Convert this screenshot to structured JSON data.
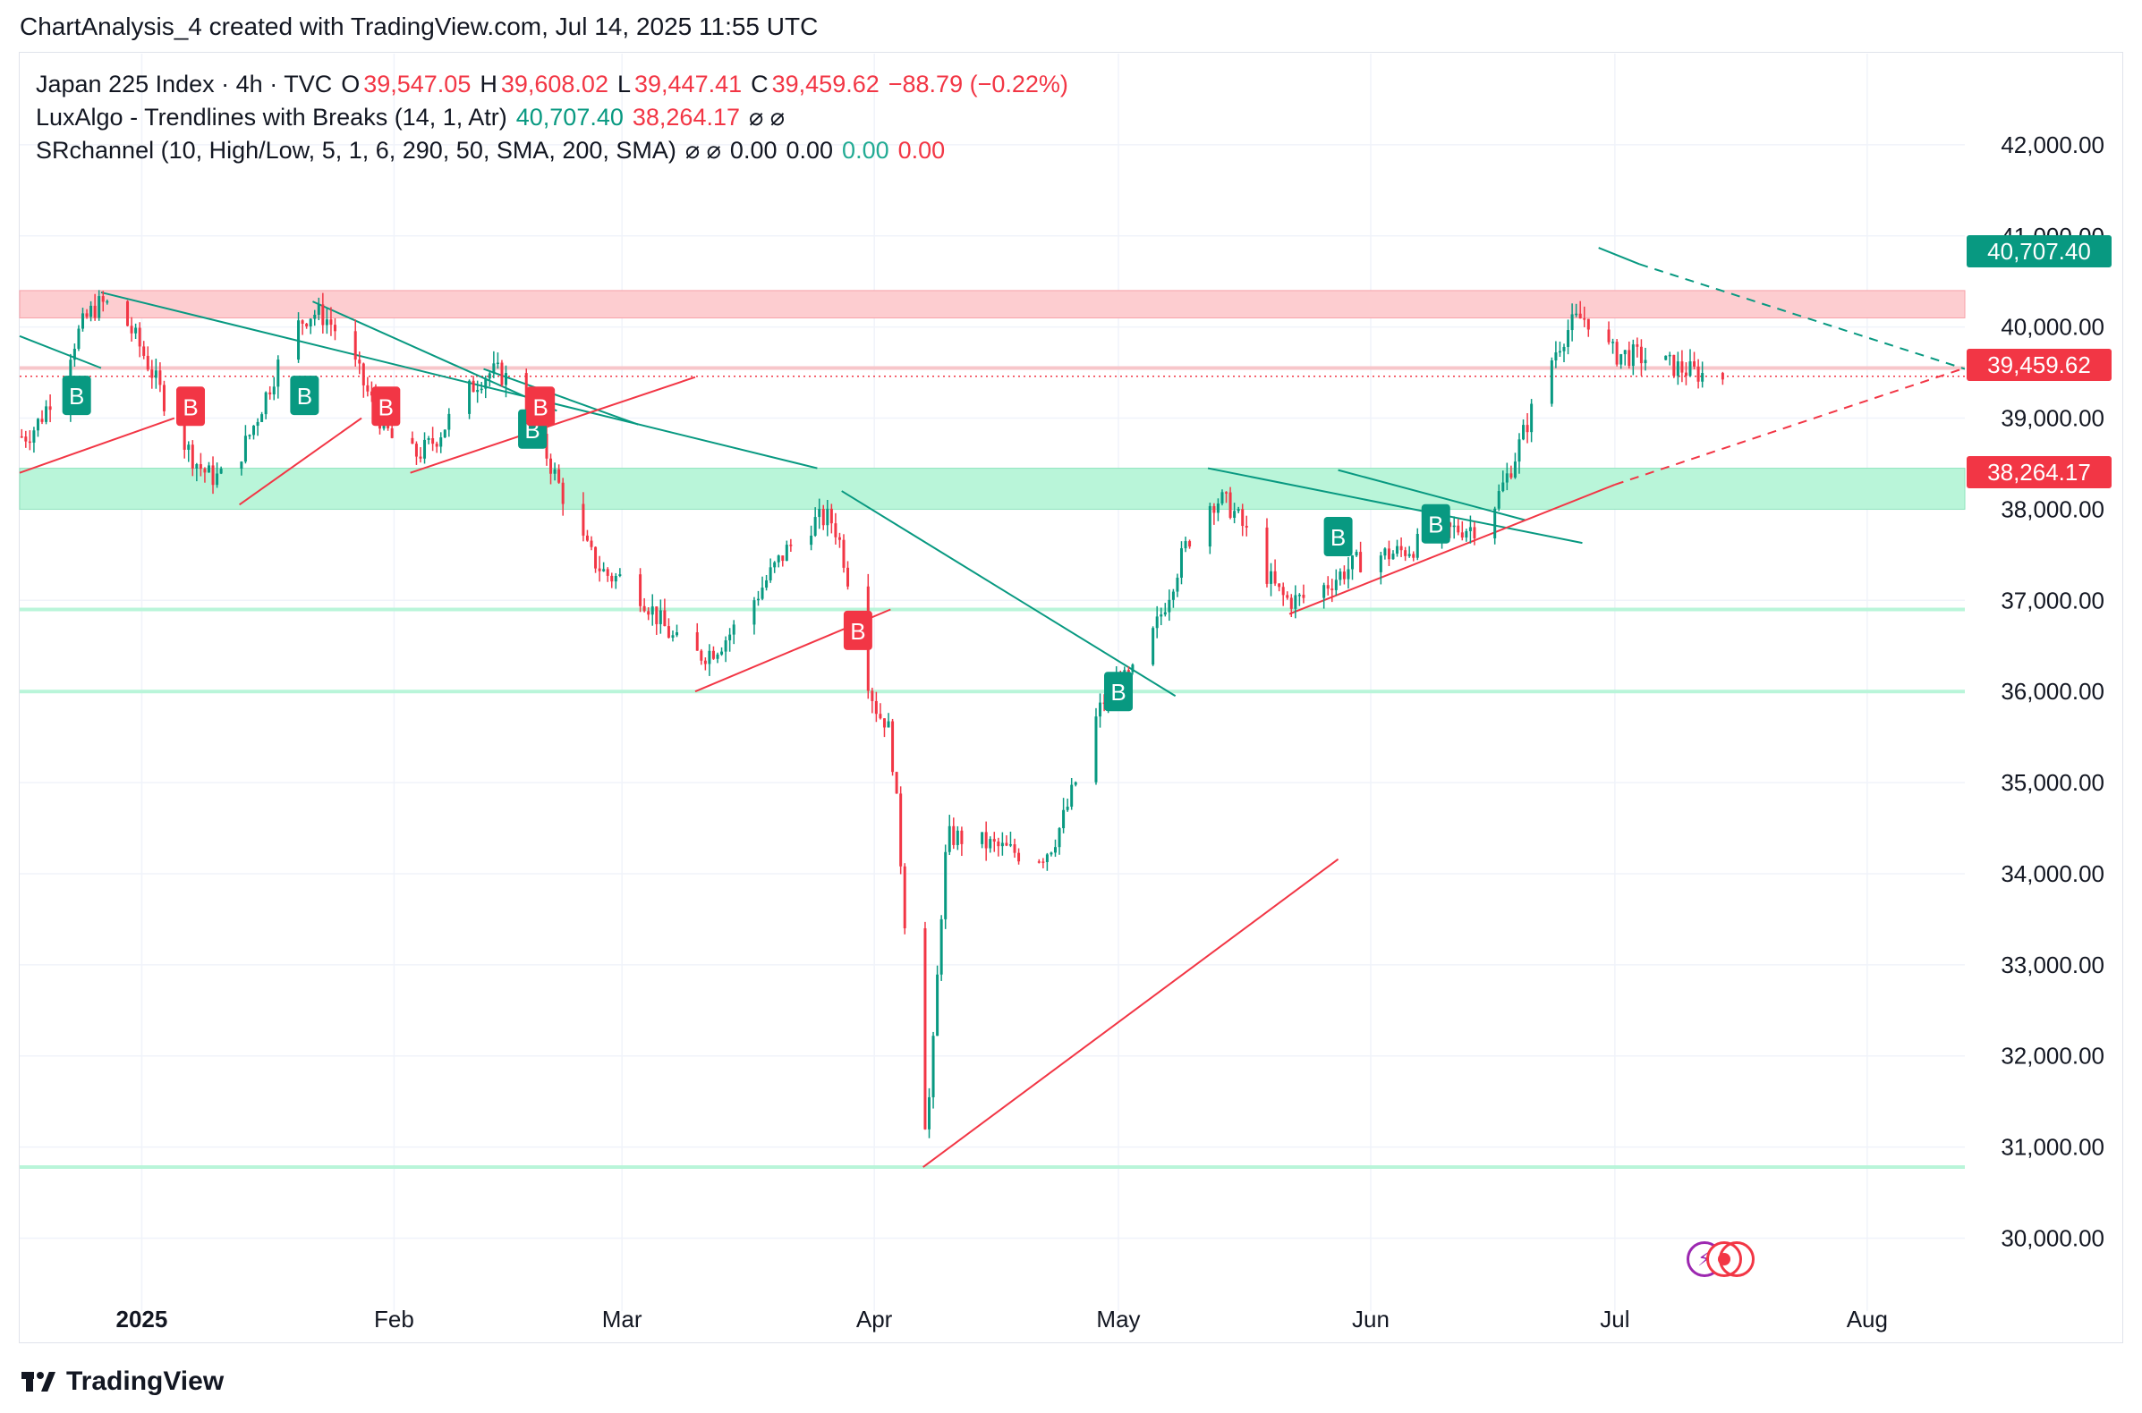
{
  "header": {
    "text": "ChartAnalysis_4 created with TradingView.com, Jul 14, 2025 11:55 UTC"
  },
  "legend": {
    "symbol": "Japan 225 Index · 4h · TVC",
    "o_label": "O",
    "o_value": "39,547.05",
    "h_label": "H",
    "h_value": "39,608.02",
    "l_label": "L",
    "l_value": "39,447.41",
    "c_label": "C",
    "c_value": "39,459.62",
    "change": "−88.79 (−0.22%)",
    "ind1_name": "LuxAlgo - Trendlines with Breaks (14, 1, Atr)",
    "ind1_v1": "40,707.40",
    "ind1_v2": "38,264.17",
    "ind1_icons": "⌀ ⌀",
    "ind2_name": "SRchannel (10, High/Low, 5, 1, 6, 290, 50, SMA, 200, SMA)",
    "ind2_icons": "⌀ ⌀",
    "ind2_v1": "0.00",
    "ind2_v2": "0.00",
    "ind2_v3": "0.00",
    "ind2_v4": "0.00"
  },
  "badges": {
    "upper": "40,707.40",
    "last": "39,459.62",
    "lower": "38,264.17"
  },
  "footer": {
    "brand": "TradingView"
  },
  "colors": {
    "up": "#089981",
    "down": "#f23645",
    "resistance_zone": "#fdcdd0",
    "support_zone": "#b9f5d9",
    "support_line": "#b9f5d9",
    "trend_down": "#089981",
    "trend_up": "#f23645",
    "grid": "#f0f3fa"
  },
  "chart_data": {
    "type": "candlestick",
    "title": "Japan 225 Index · 4h · TVC",
    "x_tick_labels": [
      "2025",
      "Feb",
      "Mar",
      "Apr",
      "May",
      "Jun",
      "Jul",
      "Aug"
    ],
    "x_tick_dates": [
      "2025-01-01",
      "2025-02-01",
      "2025-03-01",
      "2025-04-01",
      "2025-05-01",
      "2025-06-01",
      "2025-07-01",
      "2025-08-01"
    ],
    "x_range": [
      "2024-12-17",
      "2025-08-13"
    ],
    "y_ticks": [
      30000,
      31000,
      32000,
      33000,
      34000,
      35000,
      36000,
      37000,
      38000,
      39000,
      40000,
      41000,
      42000
    ],
    "y_tick_labels": [
      "30,000.00",
      "31,000.00",
      "32,000.00",
      "33,000.00",
      "34,000.00",
      "35,000.00",
      "36,000.00",
      "37,000.00",
      "38,000.00",
      "39,000.00",
      "40,000.00",
      "41,000.00",
      "42,000.00"
    ],
    "ylim": [
      29200,
      43000
    ],
    "grid": true,
    "last_close": 39459.62,
    "key_points": [
      {
        "date": "2024-12-17",
        "close": 38800
      },
      {
        "date": "2024-12-27",
        "close": 40250
      },
      {
        "date": "2025-01-10",
        "close": 38350
      },
      {
        "date": "2025-01-22",
        "close": 40150
      },
      {
        "date": "2025-02-03",
        "close": 38600
      },
      {
        "date": "2025-02-13",
        "close": 39500
      },
      {
        "date": "2025-02-28",
        "close": 37250
      },
      {
        "date": "2025-03-10",
        "close": 36400
      },
      {
        "date": "2025-03-26",
        "close": 37900
      },
      {
        "date": "2025-04-02",
        "close": 35700
      },
      {
        "date": "2025-04-07",
        "close": 31300
      },
      {
        "date": "2025-04-10",
        "close": 34400
      },
      {
        "date": "2025-04-21",
        "close": 34200
      },
      {
        "date": "2025-05-01",
        "close": 36100
      },
      {
        "date": "2025-05-13",
        "close": 38100
      },
      {
        "date": "2025-05-22",
        "close": 37000
      },
      {
        "date": "2025-06-02",
        "close": 37500
      },
      {
        "date": "2025-06-13",
        "close": 37800
      },
      {
        "date": "2025-06-27",
        "close": 40100
      },
      {
        "date": "2025-07-01",
        "close": 39700
      },
      {
        "date": "2025-07-14",
        "close": 39459.62
      }
    ],
    "zones": [
      {
        "type": "resistance",
        "from": 40100,
        "to": 40400
      },
      {
        "type": "support",
        "from": 38000,
        "to": 38450
      }
    ],
    "levels": [
      39550,
      36900,
      36000,
      30780
    ],
    "buy_markers": [
      {
        "date": "2024-12-24",
        "price": 39250
      },
      {
        "date": "2025-01-21",
        "price": 39250
      },
      {
        "date": "2025-02-18",
        "price": 38880
      },
      {
        "date": "2025-05-01",
        "price": 36000
      },
      {
        "date": "2025-05-28",
        "price": 37700
      },
      {
        "date": "2025-06-09",
        "price": 37840
      }
    ],
    "sell_markers": [
      {
        "date": "2025-01-07",
        "price": 39130
      },
      {
        "date": "2025-01-31",
        "price": 39130
      },
      {
        "date": "2025-02-19",
        "price": 39130
      },
      {
        "date": "2025-03-30",
        "price": 36670
      }
    ]
  }
}
